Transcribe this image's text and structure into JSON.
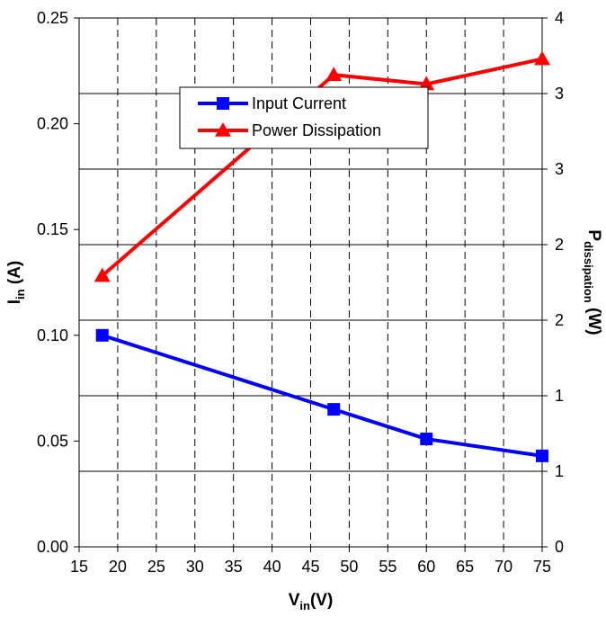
{
  "chart_data": {
    "type": "line",
    "x_ticks": [
      "15",
      "20",
      "25",
      "30",
      "35",
      "40",
      "45",
      "50",
      "55",
      "60",
      "65",
      "70",
      "75"
    ],
    "xlim": [
      15,
      75
    ],
    "y_left_ticks": [
      "0.00",
      "0.05",
      "0.10",
      "0.15",
      "0.20",
      "0.25"
    ],
    "ylim_left": [
      0,
      0.25
    ],
    "y_right_ticks": [
      "0",
      "1",
      "1",
      "2",
      "2",
      "3",
      "3",
      "4"
    ],
    "ylim_right": [
      0,
      4
    ],
    "xlabel": {
      "main": "V",
      "sub": "in",
      "tail": "(V)"
    },
    "ylabel_left": {
      "main": "I",
      "sub": "in",
      "tail": " (A)"
    },
    "ylabel_right": {
      "main": "P",
      "sub": "dissipation",
      "tail": " (W)"
    },
    "legend_position": "top-center",
    "grid": {
      "x_dashed": true,
      "y_solid": true
    },
    "series": [
      {
        "name": "Input Current",
        "axis": "left",
        "color": "#0000FF",
        "marker": "square",
        "x": [
          18,
          48,
          60,
          75
        ],
        "y": [
          0.1,
          0.065,
          0.051,
          0.043
        ]
      },
      {
        "name": "Power Dissipation",
        "axis": "right",
        "color": "#FF0000",
        "marker": "triangle",
        "x": [
          18,
          48,
          60,
          75
        ],
        "y": [
          2.05,
          3.57,
          3.5,
          3.69
        ]
      }
    ]
  }
}
